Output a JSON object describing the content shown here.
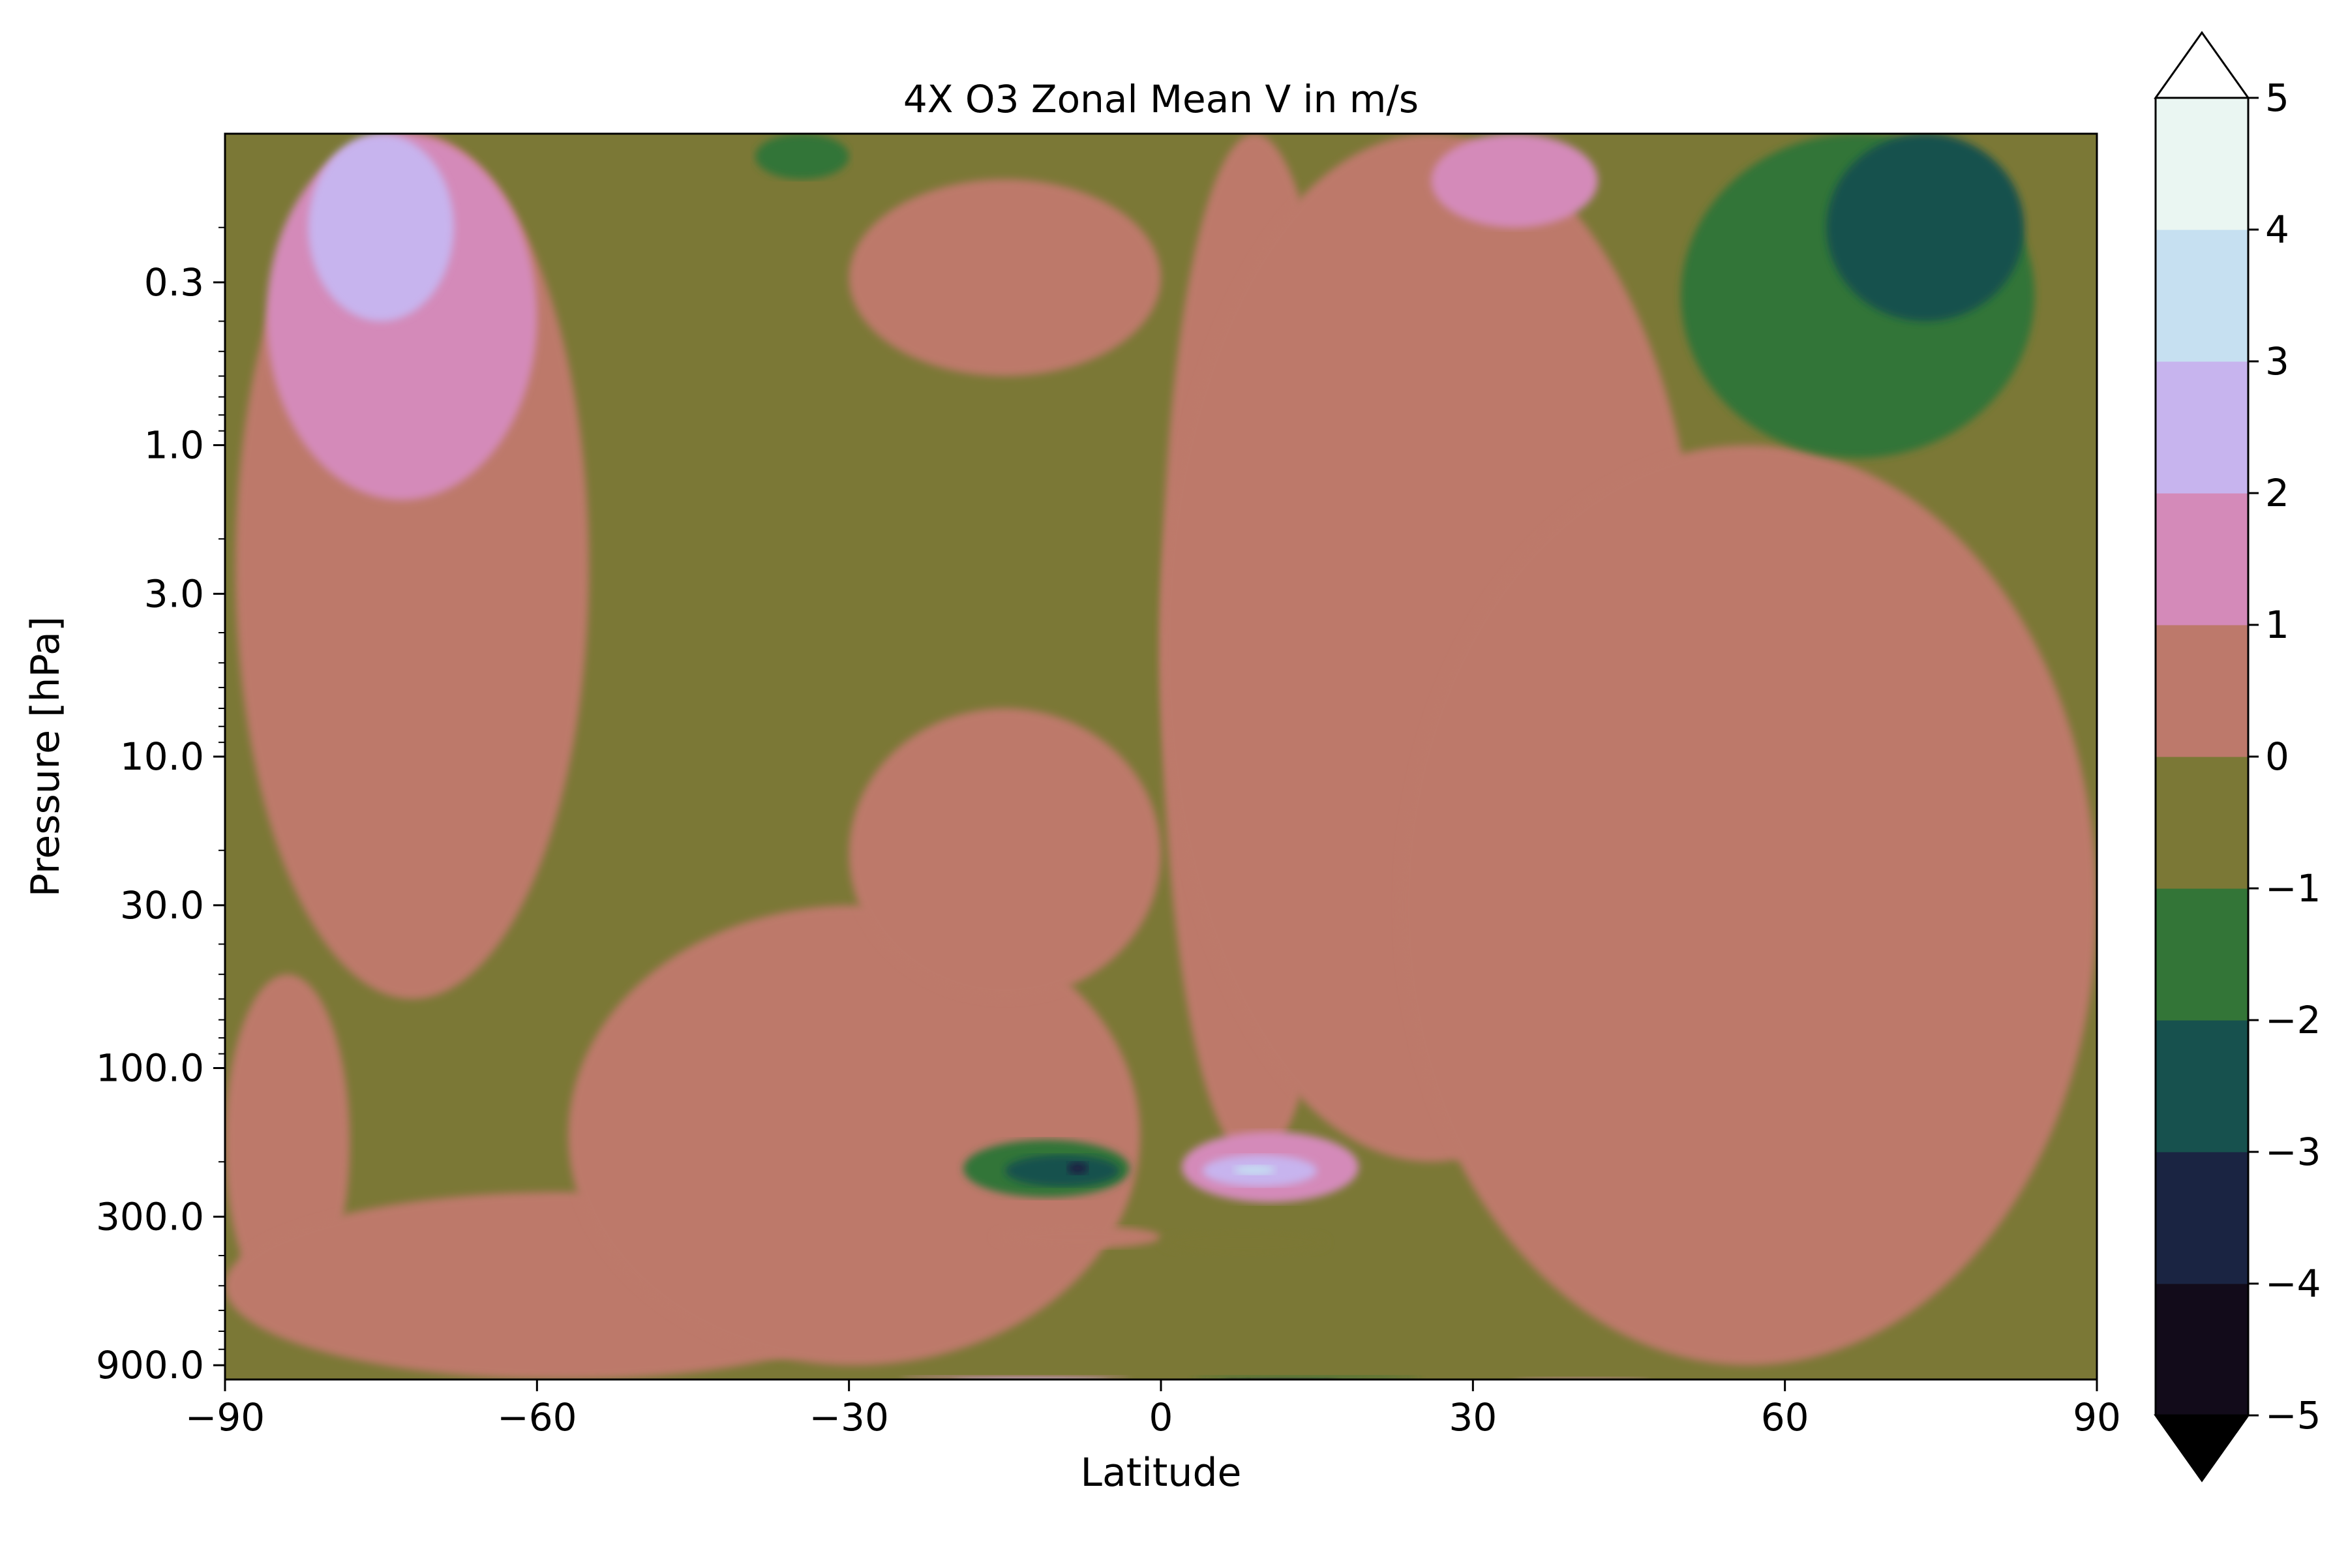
{
  "chart_data": {
    "type": "heatmap",
    "title": "4X O3 Zonal Mean V in m/s",
    "xlabel": "Latitude",
    "ylabel": "Pressure [hPa]",
    "x_ticks": [
      -90,
      -60,
      -30,
      0,
      30,
      60,
      90
    ],
    "x_tick_labels": [
      "−90",
      "−60",
      "−30",
      "0",
      "30",
      "60",
      "90"
    ],
    "y_scale": "log",
    "y_inverted": true,
    "y_ticks": [
      0.3,
      1.0,
      3.0,
      10.0,
      30.0,
      100.0,
      300.0,
      900.0
    ],
    "y_tick_labels": [
      "0.3",
      "1.0",
      "3.0",
      "10.0",
      "30.0",
      "100.0",
      "300.0",
      "900.0"
    ],
    "xlim": [
      -90,
      90
    ],
    "ylim": [
      1000,
      0.1
    ],
    "colorbar": {
      "levels": [
        -5,
        -4,
        -3,
        -2,
        -1,
        0,
        1,
        2,
        3,
        4,
        5
      ],
      "tick_labels": [
        "−5",
        "−4",
        "−3",
        "−2",
        "−1",
        "0",
        "1",
        "2",
        "3",
        "4",
        "5"
      ],
      "colors": [
        "#120b1a",
        "#1a2442",
        "#17514e",
        "#337537",
        "#7b7836",
        "#bd796b",
        "#d48ab9",
        "#c7b4ee",
        "#c6e0f1",
        "#eaf6f2"
      ],
      "under_color": "#000000",
      "over_color": "#ffffff",
      "extend": "both"
    },
    "contour_features": [
      {
        "level": -1,
        "region": [
          -90,
          90,
          1000,
          0.1
        ]
      },
      {
        "level": 0,
        "region": [
          -89,
          -55,
          60,
          0.1
        ]
      },
      {
        "level": 1,
        "region": [
          -86,
          -60,
          1.5,
          0.1
        ]
      },
      {
        "level": 2,
        "region": [
          -82,
          -68,
          0.4,
          0.1
        ]
      },
      {
        "level": 0,
        "region": [
          -90,
          -78,
          600,
          50
        ]
      },
      {
        "level": 0,
        "region": [
          -90,
          -25,
          1000,
          250
        ]
      },
      {
        "level": 0,
        "region": [
          -57,
          -2,
          900,
          30
        ]
      },
      {
        "level": 0,
        "region": [
          -30,
          0,
          60,
          7
        ]
      },
      {
        "level": 0,
        "region": [
          -30,
          0,
          0.6,
          0.14
        ]
      },
      {
        "level": 0,
        "region": [
          0,
          18,
          200,
          0.1
        ]
      },
      {
        "level": 0,
        "region": [
          0,
          52,
          200,
          0.1
        ]
      },
      {
        "level": 0,
        "region": [
          23,
          90,
          900,
          1
        ]
      },
      {
        "level": 1,
        "region": [
          26,
          42,
          0.2,
          0.1
        ]
      },
      {
        "level": -2,
        "region": [
          50,
          84,
          1.1,
          0.1
        ]
      },
      {
        "level": -3,
        "region": [
          64,
          83,
          0.4,
          0.1
        ]
      },
      {
        "level": -2,
        "region": [
          -39,
          -30,
          0.14,
          0.1
        ]
      },
      {
        "level": -2,
        "region": [
          -19,
          -3,
          260,
          170
        ]
      },
      {
        "level": -3,
        "region": [
          -15,
          -4,
          240,
          190
        ]
      },
      {
        "level": -4,
        "region": [
          -9,
          -7,
          220,
          200
        ]
      },
      {
        "level": 1,
        "region": [
          2,
          19,
          270,
          160
        ]
      },
      {
        "level": 2,
        "region": [
          4,
          15,
          240,
          190
        ]
      },
      {
        "level": 3,
        "region": [
          7,
          11,
          220,
          205
        ]
      },
      {
        "level": 0,
        "region": [
          -16,
          0,
          380,
          320
        ]
      },
      {
        "level": -1,
        "region": [
          0,
          16,
          400,
          330
        ]
      },
      {
        "level": 1,
        "region": [
          -25,
          -3,
          1000,
          970
        ]
      },
      {
        "level": 2,
        "region": [
          -20,
          -5,
          1000,
          980
        ]
      },
      {
        "level": -2,
        "region": [
          3,
          25,
          1000,
          970
        ]
      },
      {
        "level": -4,
        "region": [
          6,
          17,
          1000,
          985
        ]
      },
      {
        "level": 1,
        "region": [
          34,
          47,
          1000,
          980
        ]
      }
    ]
  }
}
